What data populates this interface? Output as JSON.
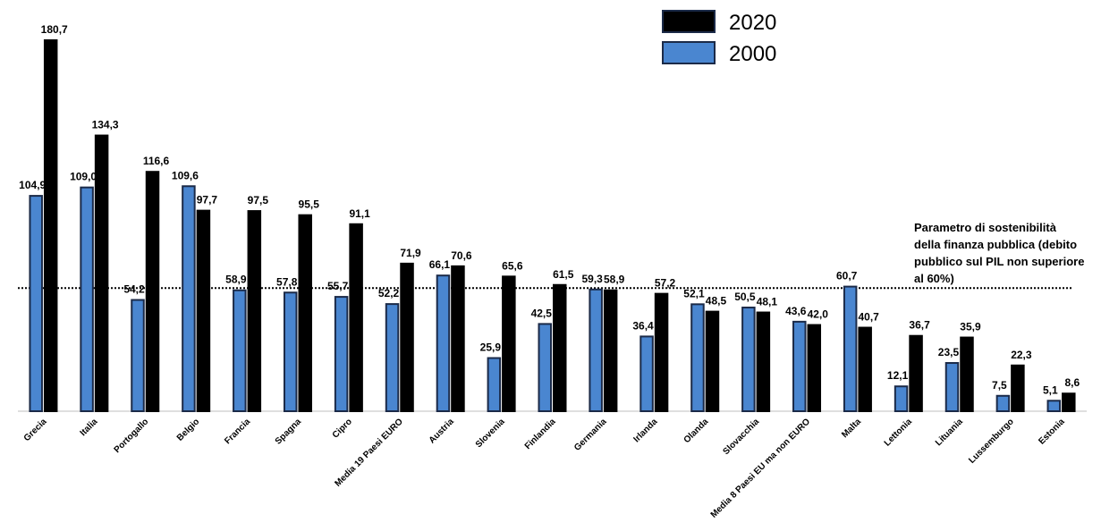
{
  "chart_data": {
    "type": "bar",
    "categories": [
      "Grecia",
      "Italia",
      "Portogallo",
      "Belgio",
      "Francia",
      "Spagna",
      "Cipro",
      "Media 19 Paesi EURO",
      "Austria",
      "Slovenia",
      "Finlandia",
      "Germania",
      "Irlanda",
      "Olanda",
      "Slovacchia",
      "Media 8 Paesi EU ma non EURO",
      "Malta",
      "Lettonia",
      "Lituania",
      "Lussemburgo",
      "Estonia"
    ],
    "series": [
      {
        "name": "2000",
        "color": "#4a86d0",
        "values": [
          104.9,
          109.0,
          54.2,
          109.6,
          58.9,
          57.8,
          55.7,
          52.2,
          66.1,
          25.9,
          42.5,
          59.3,
          36.4,
          52.1,
          50.5,
          43.6,
          60.7,
          12.1,
          23.5,
          7.5,
          5.1
        ],
        "value_labels": [
          "104,9",
          "109,0",
          "54,2",
          "109,6",
          "58,9",
          "57,8",
          "55,7",
          "52,2",
          "66,1",
          "25,9",
          "42,5",
          "59,3",
          "36,4",
          "52,1",
          "50,5",
          "43,6",
          "60,7",
          "12,1",
          "23,5",
          "7,5",
          "5,1"
        ]
      },
      {
        "name": "2020",
        "color": "#000000",
        "values": [
          180.7,
          134.3,
          116.6,
          97.7,
          97.5,
          95.5,
          91.1,
          71.9,
          70.6,
          65.6,
          61.5,
          58.9,
          57.2,
          48.5,
          48.1,
          42.0,
          40.7,
          36.7,
          35.9,
          22.3,
          8.6
        ],
        "value_labels": [
          "180,7",
          "134,3",
          "116,6",
          "97,7",
          "97,5",
          "95,5",
          "91,1",
          "71,9",
          "70,6",
          "65,6",
          "61,5",
          "58,9",
          "57,2",
          "48,5",
          "48,1",
          "42,0",
          "40,7",
          "36,7",
          "35,9",
          "22,3",
          "8,6"
        ]
      }
    ],
    "reference_line": 60,
    "annotation": [
      "Parametro di sostenibilità",
      "della finanza pubblica (debito",
      "pubblico sul PIL non superiore",
      "al 60%)"
    ]
  }
}
